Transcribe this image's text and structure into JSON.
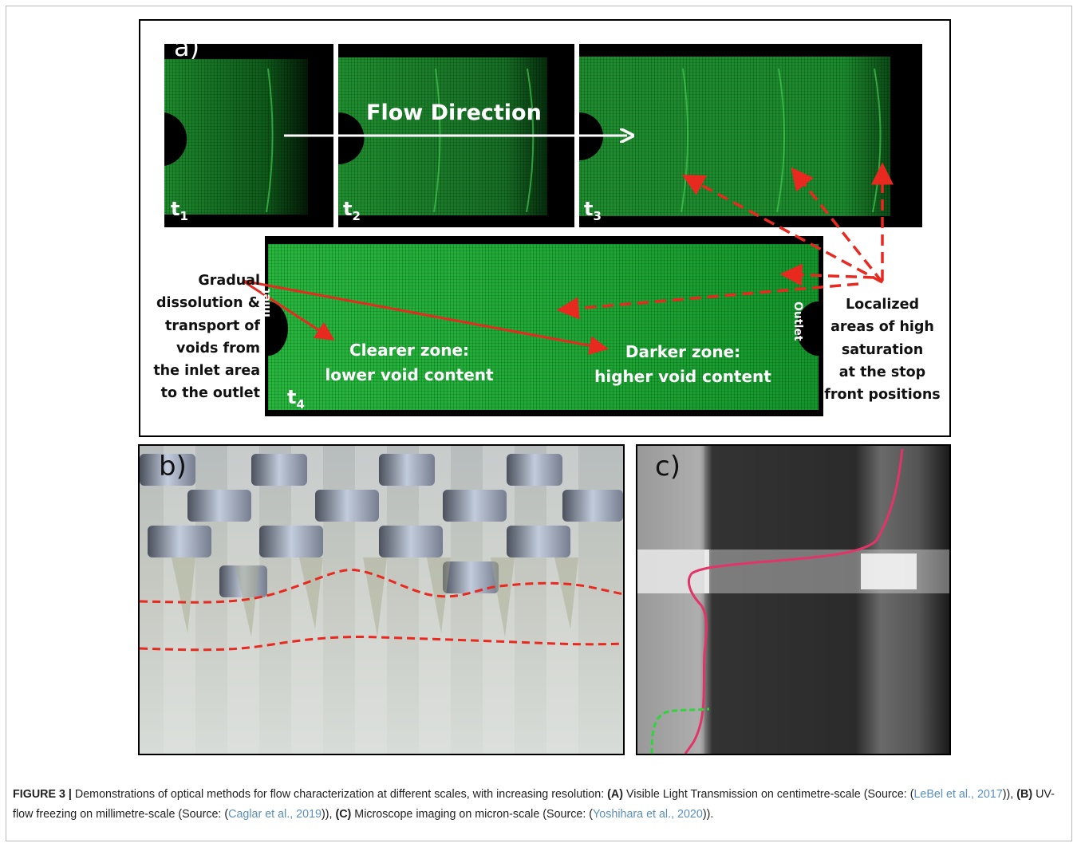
{
  "panel_a": {
    "label": "a)",
    "flow_direction": "Flow Direction",
    "time_labels": [
      "t",
      "t",
      "t",
      "t"
    ],
    "time_subscripts": [
      "1",
      "2",
      "3",
      "4"
    ],
    "inlet": "Inlet",
    "outlet": "Outlet",
    "left_annotation": [
      "Gradual",
      "dissolution &",
      "transport of",
      "voids from",
      "the inlet area",
      "to the outlet"
    ],
    "clearer_zone": [
      "Clearer zone:",
      "lower void content"
    ],
    "darker_zone": [
      "Darker zone:",
      "higher void content"
    ],
    "right_annotation": [
      "Localized",
      "areas of high",
      "saturation",
      "at the stop",
      "front positions"
    ]
  },
  "panel_b": {
    "label": "b)"
  },
  "panel_c": {
    "label": "c)"
  },
  "caption": {
    "figure_label": "FIGURE 3 |",
    "intro": " Demonstrations of optical methods for flow characterization at different scales, with increasing resolution: ",
    "a_tag": "(A)",
    "a_text": " Visible Light Transmission on centimetre-scale (Source: (",
    "a_cite": "LeBel et al., 2017",
    "a_end": ")), ",
    "b_tag": "(B)",
    "b_text": " UV-flow freezing on millimetre-scale (Source: (",
    "b_cite": "Caglar et al., 2019",
    "b_end": ")), ",
    "c_tag": "(C)",
    "c_text": " Microscope imaging on micron-scale (Source: (",
    "c_cite": "Yoshihara et al., 2020",
    "c_end": "))."
  },
  "colors": {
    "arrow_red": "#e8291f",
    "fluor_green": "#1fb53a",
    "contour_pink": "#e23468",
    "contour_green": "#2fd43a"
  }
}
